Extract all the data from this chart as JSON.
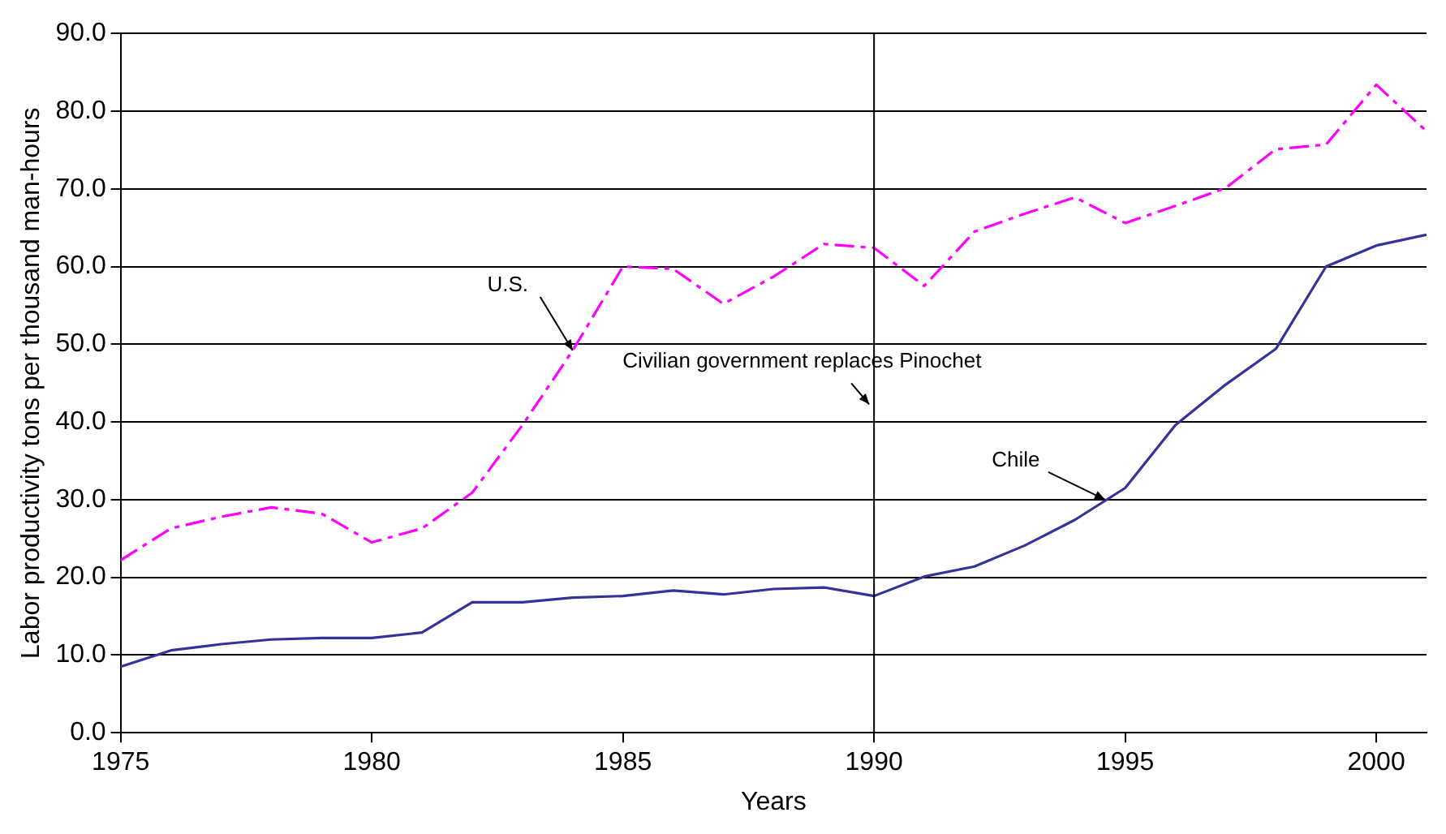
{
  "chart_data": {
    "type": "line",
    "xlabel": "Years",
    "ylabel": "Labor productivity tons per thousand man-hours",
    "x": [
      1975,
      1976,
      1977,
      1978,
      1979,
      1980,
      1981,
      1982,
      1983,
      1984,
      1985,
      1986,
      1987,
      1988,
      1989,
      1990,
      1991,
      1992,
      1993,
      1994,
      1995,
      1996,
      1997,
      1998,
      1999,
      2000,
      2001
    ],
    "xlim": [
      1975,
      2001
    ],
    "xticks": [
      1975,
      1980,
      1985,
      1990,
      1995,
      2000
    ],
    "ylim": [
      0,
      90
    ],
    "yticks": [
      {
        "value": 0,
        "label": "0.0"
      },
      {
        "value": 10,
        "label": "10.0"
      },
      {
        "value": 20,
        "label": "20.0"
      },
      {
        "value": 30,
        "label": "30.0"
      },
      {
        "value": 40,
        "label": "40.0"
      },
      {
        "value": 50,
        "label": "50.0"
      },
      {
        "value": 60,
        "label": "60.0"
      },
      {
        "value": 70,
        "label": "70.0"
      },
      {
        "value": 80,
        "label": "80.0"
      },
      {
        "value": 90,
        "label": "90.0"
      }
    ],
    "grid": "y",
    "legend": false,
    "marker": "none",
    "annotations": [
      {
        "text": "U.S.",
        "x": 1984,
        "y": 49.2
      },
      {
        "text": "Chile",
        "x": 1994.6,
        "y": 30
      }
    ],
    "series": [
      {
        "color": "#ff00ff",
        "line_style": "dashed",
        "values": [
          22.2,
          26.3,
          27.8,
          29.0,
          28.2,
          24.5,
          26.3,
          30.9,
          39.6,
          49.2,
          60.0,
          59.7,
          55.2,
          58.7,
          62.9,
          62.4,
          57.5,
          64.5,
          66.8,
          68.9,
          65.6,
          67.8,
          70.1,
          75.1,
          75.7,
          83.4,
          77.4
        ]
      },
      {
        "color": "#333399",
        "line_style": "solid",
        "values": [
          8.5,
          10.6,
          11.4,
          12.0,
          12.2,
          12.2,
          12.9,
          16.8,
          16.8,
          17.4,
          17.6,
          18.3,
          17.8,
          18.5,
          18.7,
          17.6,
          20.1,
          21.4,
          24.1,
          27.4,
          31.5,
          39.6,
          44.8,
          49.4,
          60.0,
          62.7,
          64.1
        ]
      }
    ],
    "ref_lines": [
      {
        "axis": "x",
        "value": 1990,
        "label": "Civilian government replaces Pinochet",
        "color": "#000000"
      }
    ]
  }
}
